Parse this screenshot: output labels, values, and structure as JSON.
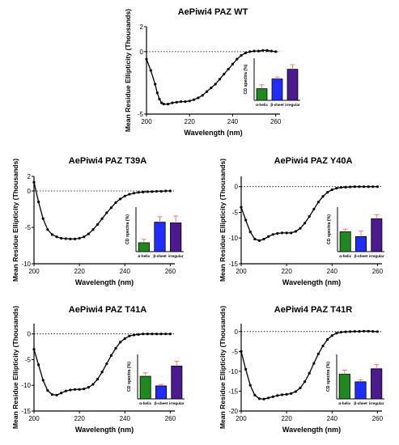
{
  "colors": {
    "curve": "#000000",
    "helix": "#1e8a1e",
    "sheet": "#1f2cff",
    "irregular": "#4b1a8e",
    "error": "#ff6b6b"
  },
  "chart_data": [
    {
      "type": "line",
      "title": "AePiwi4 PAZ WT",
      "xlabel": "Wavelength (nm)",
      "ylabel": "Mean Residue Ellipticity (Thousands)",
      "xlim": [
        200,
        262
      ],
      "ylim": [
        -5,
        2
      ],
      "xticks": [
        200,
        220,
        240,
        260
      ],
      "yticks": [
        2,
        0,
        -5
      ],
      "zero_line": "dotted",
      "series": [
        {
          "x": [
            200,
            202,
            204,
            205,
            206,
            207,
            208,
            210,
            212,
            214,
            216,
            218,
            220,
            222,
            224,
            226,
            228,
            230,
            232,
            234,
            236,
            238,
            240,
            242,
            244,
            246,
            248,
            250,
            252,
            254,
            256,
            258,
            260
          ],
          "y": [
            -0.6,
            -1.5,
            -2.6,
            -3.3,
            -3.8,
            -4.1,
            -4.2,
            -4.2,
            -4.1,
            -4.05,
            -4.0,
            -4.0,
            -3.95,
            -3.85,
            -3.7,
            -3.5,
            -3.2,
            -2.9,
            -2.6,
            -2.2,
            -1.8,
            -1.4,
            -1.0,
            -0.6,
            -0.3,
            -0.1,
            0.0,
            0.05,
            0.05,
            0.1,
            0.1,
            0.05,
            0.0
          ]
        }
      ],
      "inset": {
        "type": "bar",
        "ylabel": "CD spectra (%)",
        "categories": [
          "α-helix",
          "β-sheet",
          "irregular"
        ],
        "ylim": [
          0,
          65
        ],
        "values": [
          18,
          33,
          48
        ],
        "errors": [
          6,
          3,
          7
        ]
      }
    },
    {
      "type": "line",
      "title": "AePiwi4 PAZ T39A",
      "xlabel": "Wavelength (nm)",
      "ylabel": "Mean Residue Ellipticity (Thousands)",
      "xlim": [
        200,
        262
      ],
      "ylim": [
        -10,
        2
      ],
      "xticks": [
        200,
        220,
        240,
        260
      ],
      "yticks": [
        2,
        0,
        -5,
        -10
      ],
      "zero_line": "dotted",
      "series": [
        {
          "x": [
            200,
            202,
            204,
            206,
            208,
            210,
            212,
            214,
            216,
            218,
            220,
            222,
            224,
            226,
            228,
            230,
            232,
            234,
            236,
            238,
            240,
            242,
            244,
            246,
            248,
            250,
            252,
            254,
            256,
            258,
            260
          ],
          "y": [
            1.2,
            -1.5,
            -3.8,
            -5.3,
            -6.0,
            -6.3,
            -6.5,
            -6.55,
            -6.6,
            -6.6,
            -6.5,
            -6.3,
            -5.9,
            -5.3,
            -4.6,
            -3.8,
            -3.0,
            -2.3,
            -1.6,
            -1.1,
            -0.7,
            -0.45,
            -0.3,
            -0.2,
            -0.15,
            -0.1,
            -0.1,
            -0.05,
            -0.05,
            0.0,
            0.0
          ]
        }
      ],
      "inset": {
        "type": "bar",
        "ylabel": "CD spectra (%)",
        "categories": [
          "α-helix",
          "β-sheet",
          "irregular"
        ],
        "ylim": [
          0,
          65
        ],
        "values": [
          13,
          43,
          42
        ],
        "errors": [
          5,
          8,
          10
        ]
      }
    },
    {
      "type": "line",
      "title": "AePiwi4 PAZ Y40A",
      "xlabel": "Wavelength (nm)",
      "ylabel": "Mean Residue Ellipticity (Thousands)",
      "xlim": [
        200,
        262
      ],
      "ylim": [
        -15,
        2
      ],
      "xticks": [
        200,
        220,
        240,
        260
      ],
      "yticks": [
        0,
        -5,
        -10,
        -15
      ],
      "zero_line": "dotted",
      "series": [
        {
          "x": [
            200,
            202,
            204,
            206,
            208,
            210,
            212,
            214,
            216,
            218,
            220,
            222,
            224,
            226,
            228,
            230,
            232,
            234,
            236,
            238,
            240,
            242,
            244,
            246,
            248,
            250,
            252,
            254,
            256,
            258,
            260
          ],
          "y": [
            -4.0,
            -6.5,
            -8.8,
            -10.2,
            -10.5,
            -10.2,
            -9.7,
            -9.3,
            -9.1,
            -9.0,
            -9.0,
            -9.0,
            -8.7,
            -8.1,
            -7.1,
            -5.8,
            -4.4,
            -3.0,
            -1.9,
            -1.1,
            -0.6,
            -0.3,
            -0.15,
            -0.1,
            -0.05,
            0.0,
            0.0,
            0.0,
            0.0,
            0.0,
            0.0
          ]
        }
      ],
      "inset": {
        "type": "bar",
        "ylabel": "CD spectra (%)",
        "categories": [
          "α-helix",
          "β-sheet",
          "irregular"
        ],
        "ylim": [
          0,
          65
        ],
        "values": [
          29,
          22,
          48
        ],
        "errors": [
          4,
          8,
          6
        ]
      }
    },
    {
      "type": "line",
      "title": "AePiwi4 PAZ T41A",
      "xlabel": "Wavelength (nm)",
      "ylabel": "Mean Residue Ellipticity (Thousands)",
      "xlim": [
        200,
        262
      ],
      "ylim": [
        -15,
        2
      ],
      "xticks": [
        200,
        220,
        240,
        260
      ],
      "yticks": [
        0,
        -5,
        -10,
        -15
      ],
      "zero_line": "dotted",
      "series": [
        {
          "x": [
            200,
            202,
            204,
            206,
            208,
            210,
            212,
            214,
            216,
            218,
            220,
            222,
            224,
            226,
            228,
            230,
            232,
            234,
            236,
            238,
            240,
            242,
            244,
            246,
            248,
            250,
            252,
            254,
            256,
            258,
            260
          ],
          "y": [
            -3.0,
            -6.0,
            -9.0,
            -11.0,
            -11.8,
            -11.9,
            -11.5,
            -11.1,
            -10.9,
            -10.8,
            -10.8,
            -10.7,
            -10.4,
            -9.8,
            -8.8,
            -7.4,
            -5.8,
            -4.2,
            -2.8,
            -1.6,
            -0.9,
            -0.4,
            -0.2,
            -0.1,
            0.0,
            0.0,
            0.0,
            0.0,
            0.0,
            0.0,
            0.0
          ]
        }
      ],
      "inset": {
        "type": "bar",
        "ylabel": "CD spectra (%)",
        "categories": [
          "α-helix",
          "β-sheet",
          "irregular"
        ],
        "ylim": [
          0,
          65
        ],
        "values": [
          33,
          19,
          48
        ],
        "errors": [
          5,
          2,
          7
        ]
      }
    },
    {
      "type": "line",
      "title": "AePiwi4 PAZ T41R",
      "xlabel": "Wavelength (nm)",
      "ylabel": "Mean Residue Ellipticity (Thousands)",
      "xlim": [
        200,
        262
      ],
      "ylim": [
        -20,
        2
      ],
      "xticks": [
        200,
        220,
        240,
        260
      ],
      "yticks": [
        0,
        -5,
        -10,
        -15,
        -20
      ],
      "zero_line": "dotted",
      "series": [
        {
          "x": [
            200,
            202,
            204,
            206,
            208,
            210,
            212,
            214,
            216,
            218,
            220,
            222,
            224,
            226,
            228,
            230,
            232,
            234,
            236,
            238,
            240,
            242,
            244,
            246,
            248,
            250,
            252,
            254,
            256,
            258,
            260
          ],
          "y": [
            -5.0,
            -9.5,
            -13.5,
            -16.0,
            -16.9,
            -17.0,
            -16.7,
            -16.4,
            -16.1,
            -15.9,
            -15.8,
            -15.6,
            -15.1,
            -14.2,
            -12.6,
            -10.5,
            -8.0,
            -5.6,
            -3.6,
            -2.0,
            -1.0,
            -0.4,
            -0.15,
            -0.05,
            0.0,
            0.05,
            0.05,
            0.1,
            0.1,
            0.05,
            0.0
          ]
        }
      ],
      "inset": {
        "type": "bar",
        "ylabel": "CD spectra (%)",
        "categories": [
          "α-helix",
          "β-sheet",
          "irregular"
        ],
        "ylim": [
          0,
          65
        ],
        "values": [
          36,
          25,
          44
        ],
        "errors": [
          6,
          3,
          6
        ]
      }
    }
  ]
}
